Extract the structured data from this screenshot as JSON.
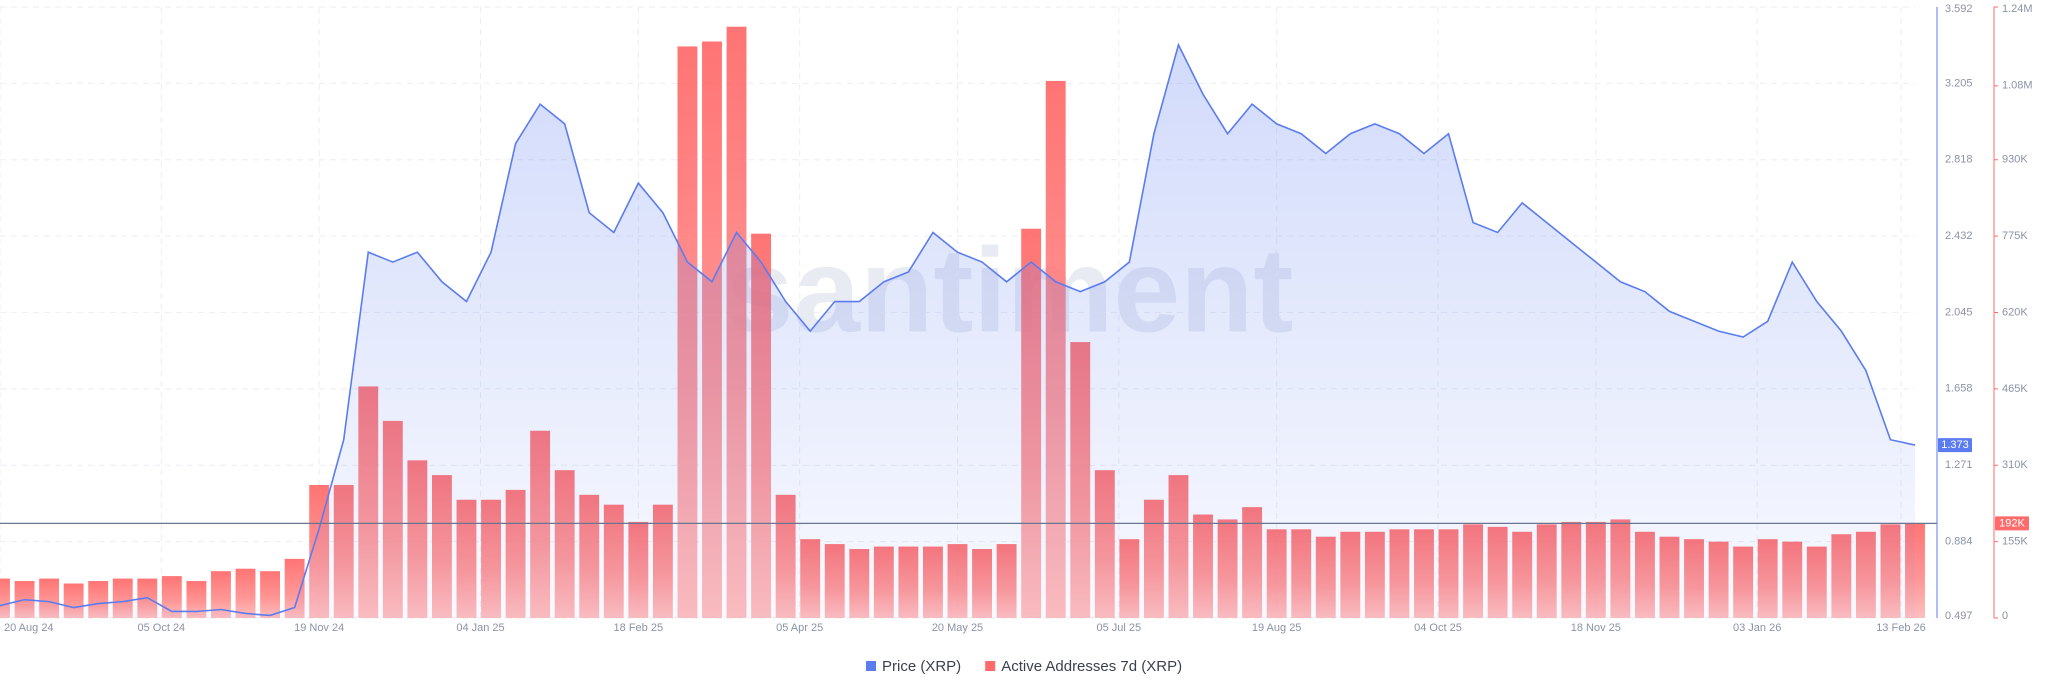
{
  "chart_data": {
    "type": "line-bar",
    "watermark": "santiment",
    "x": [
      "2024-08-20",
      "2024-08-27",
      "2024-09-03",
      "2024-09-10",
      "2024-09-17",
      "2024-09-24",
      "2024-10-01",
      "2024-10-08",
      "2024-10-15",
      "2024-10-22",
      "2024-10-29",
      "2024-11-05",
      "2024-11-12",
      "2024-11-19",
      "2024-11-26",
      "2024-12-03",
      "2024-12-10",
      "2024-12-17",
      "2024-12-24",
      "2024-12-31",
      "2025-01-07",
      "2025-01-14",
      "2025-01-21",
      "2025-01-28",
      "2025-02-04",
      "2025-02-11",
      "2025-02-18",
      "2025-02-25",
      "2025-03-04",
      "2025-03-11",
      "2025-03-18",
      "2025-03-25",
      "2025-04-01",
      "2025-04-08",
      "2025-04-15",
      "2025-04-22",
      "2025-04-29",
      "2025-05-06",
      "2025-05-13",
      "2025-05-20",
      "2025-05-27",
      "2025-06-03",
      "2025-06-10",
      "2025-06-17",
      "2025-06-24",
      "2025-07-01",
      "2025-07-08",
      "2025-07-15",
      "2025-07-22",
      "2025-07-29",
      "2025-08-05",
      "2025-08-12",
      "2025-08-19",
      "2025-08-26",
      "2025-09-02",
      "2025-09-09",
      "2025-09-16",
      "2025-09-23",
      "2025-09-30",
      "2025-10-07",
      "2025-10-14",
      "2025-10-21",
      "2025-10-28",
      "2025-11-04",
      "2025-11-11",
      "2025-11-18",
      "2025-11-25",
      "2025-12-02",
      "2025-12-09",
      "2025-12-16",
      "2025-12-23",
      "2025-12-30",
      "2026-01-06",
      "2026-01-13",
      "2026-01-20",
      "2026-01-27",
      "2026-02-03",
      "2026-02-10",
      "2026-02-17"
    ],
    "xlim": [
      "2024-08-20",
      "2026-02-17"
    ],
    "xticks": [
      {
        "value": "2024-08-20",
        "label": "20 Aug 24"
      },
      {
        "value": "2024-10-05",
        "label": "05 Oct 24"
      },
      {
        "value": "2024-11-19",
        "label": "19 Nov 24"
      },
      {
        "value": "2025-01-04",
        "label": "04 Jan 25"
      },
      {
        "value": "2025-02-18",
        "label": "18 Feb 25"
      },
      {
        "value": "2025-04-05",
        "label": "05 Apr 25"
      },
      {
        "value": "2025-05-20",
        "label": "20 May 25"
      },
      {
        "value": "2025-07-05",
        "label": "05 Jul 25"
      },
      {
        "value": "2025-08-19",
        "label": "19 Aug 25"
      },
      {
        "value": "2025-10-04",
        "label": "04 Oct 25"
      },
      {
        "value": "2025-11-18",
        "label": "18 Nov 25"
      },
      {
        "value": "2026-01-03",
        "label": "03 Jan 26"
      },
      {
        "value": "2026-02-13",
        "label": "13 Feb 26"
      }
    ],
    "ylim": [
      0.497,
      3.592
    ],
    "yticks": [
      0.497,
      0.884,
      1.271,
      1.658,
      2.045,
      2.432,
      2.818,
      3.205,
      3.592
    ],
    "y2lim": [
      0,
      1240000
    ],
    "y2ticks": [
      0,
      {
        "value": 155000,
        "label": "155K"
      },
      {
        "value": 310000,
        "label": "310K"
      },
      {
        "value": 465000,
        "label": "465K"
      },
      {
        "value": 620000,
        "label": "620K"
      },
      {
        "value": 775000,
        "label": "775K"
      },
      {
        "value": 930000,
        "label": "930K"
      },
      {
        "value": 1080000,
        "label": "1.08M"
      },
      {
        "value": 1240000,
        "label": "1.24M"
      }
    ],
    "grid": true,
    "legend": "bottom",
    "series": [
      {
        "name": "Price (XRP)",
        "color": "#5b7cf0",
        "axis": "y",
        "current_label": "1.373",
        "values": [
          0.56,
          0.59,
          0.58,
          0.55,
          0.57,
          0.58,
          0.6,
          0.53,
          0.53,
          0.54,
          0.52,
          0.51,
          0.55,
          0.95,
          1.4,
          2.35,
          2.3,
          2.35,
          2.2,
          2.1,
          2.35,
          2.9,
          3.1,
          3.0,
          2.55,
          2.45,
          2.7,
          2.55,
          2.3,
          2.2,
          2.45,
          2.3,
          2.1,
          1.95,
          2.1,
          2.1,
          2.2,
          2.25,
          2.45,
          2.35,
          2.3,
          2.2,
          2.3,
          2.2,
          2.15,
          2.2,
          2.3,
          2.95,
          3.4,
          3.15,
          2.95,
          3.1,
          3.0,
          2.95,
          2.85,
          2.95,
          3.0,
          2.95,
          2.85,
          2.95,
          2.5,
          2.45,
          2.6,
          2.5,
          2.4,
          2.3,
          2.2,
          2.15,
          2.05,
          2.0,
          1.95,
          1.92,
          2.0,
          2.3,
          2.1,
          1.95,
          1.75,
          1.4,
          1.373
        ]
      },
      {
        "name": "Active Addresses 7d (XRP)",
        "color": "#ff6b6b",
        "axis": "y2",
        "current_label": "192K",
        "values": [
          80000,
          75000,
          80000,
          70000,
          75000,
          80000,
          80000,
          85000,
          75000,
          95000,
          100000,
          95000,
          120000,
          270000,
          270000,
          470000,
          400000,
          320000,
          290000,
          240000,
          240000,
          260000,
          380000,
          300000,
          250000,
          230000,
          195000,
          230000,
          1160000,
          1170000,
          1200000,
          780000,
          250000,
          160000,
          150000,
          140000,
          145000,
          145000,
          145000,
          150000,
          140000,
          150000,
          790000,
          1090000,
          560000,
          300000,
          160000,
          240000,
          290000,
          210000,
          200000,
          225000,
          180000,
          180000,
          165000,
          175000,
          175000,
          180000,
          180000,
          180000,
          190000,
          185000,
          175000,
          190000,
          195000,
          195000,
          200000,
          175000,
          165000,
          160000,
          155000,
          145000,
          160000,
          155000,
          145000,
          170000,
          175000,
          190000,
          192000
        ]
      }
    ]
  }
}
